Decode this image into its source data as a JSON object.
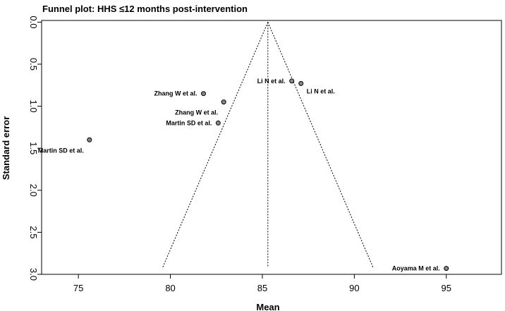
{
  "chart_data": {
    "type": "scatter",
    "subtype": "funnel plot",
    "title": "Funnel plot: HHS ≤12 months post-intervention",
    "xlabel": "Mean",
    "ylabel": "Standard error",
    "xlim": [
      73,
      98
    ],
    "ylim": [
      3.0,
      -0.02
    ],
    "y_reversed": true,
    "x_ticks": [
      75,
      80,
      85,
      90,
      95
    ],
    "y_ticks": [
      0.0,
      0.5,
      1.0,
      1.5,
      2.0,
      2.5,
      3.0
    ],
    "y_tick_labels": [
      "0.0",
      "0.5",
      "1.0",
      "1.5",
      "2.0",
      "2.5",
      "3.0"
    ],
    "pooled_estimate": 85.3,
    "funnel_bottom_se": 2.92,
    "grid": false,
    "points": [
      {
        "label": "Martin SD et al.",
        "x": 75.6,
        "y": 1.4,
        "label_pos": "below-left"
      },
      {
        "label": "Zhang W et al.",
        "x": 81.8,
        "y": 0.85,
        "label_pos": "left"
      },
      {
        "label": "Zhang W et al.",
        "x": 82.9,
        "y": 0.95,
        "label_pos": "below-left"
      },
      {
        "label": "Martin SD et al.",
        "x": 82.6,
        "y": 1.2,
        "label_pos": "left"
      },
      {
        "label": "Li N et al.",
        "x": 86.6,
        "y": 0.7,
        "label_pos": "left"
      },
      {
        "label": "Li N et al.",
        "x": 87.1,
        "y": 0.73,
        "label_pos": "below-right"
      },
      {
        "label": "Aoyama M et al.",
        "x": 95.0,
        "y": 2.93,
        "label_pos": "left"
      }
    ],
    "colors": {
      "point_fill": "#888888",
      "point_stroke": "#000000",
      "line": "#000000"
    }
  }
}
